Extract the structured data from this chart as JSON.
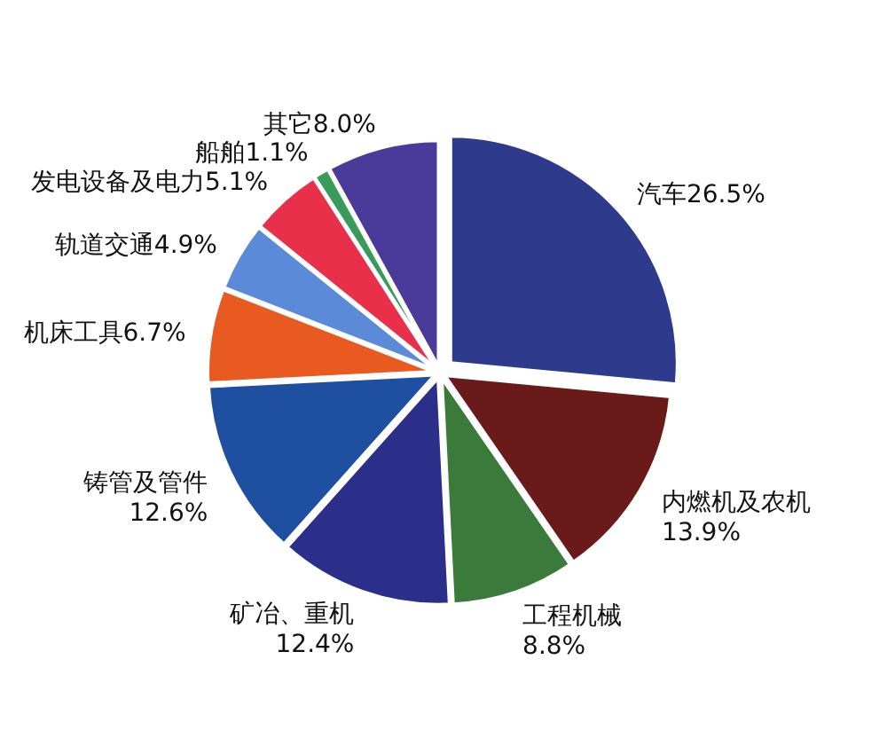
{
  "chart_data": {
    "type": "pie",
    "categories": [
      "汽车",
      "内燃机及农机",
      "工程机械",
      "矿冶、重机",
      "铸管及管件",
      "机床工具",
      "轨道交通",
      "发电设备及电力",
      "船舶",
      "其它"
    ],
    "values": [
      26.5,
      13.9,
      8.8,
      12.4,
      12.6,
      6.7,
      4.9,
      5.1,
      1.1,
      8.0
    ],
    "value_labels": [
      "26.5%",
      "13.9%",
      "8.8%",
      "12.4%",
      "12.6%",
      "6.7%",
      "4.9%",
      "5.1%",
      "1.1%",
      "8.0%"
    ],
    "colors": [
      "#2e3a8c",
      "#6b1a1a",
      "#3a7a3a",
      "#2c2f8a",
      "#1f4fa0",
      "#e85a20",
      "#5a8ad8",
      "#e8304a",
      "#3a9a5a",
      "#4a3a9a"
    ]
  }
}
